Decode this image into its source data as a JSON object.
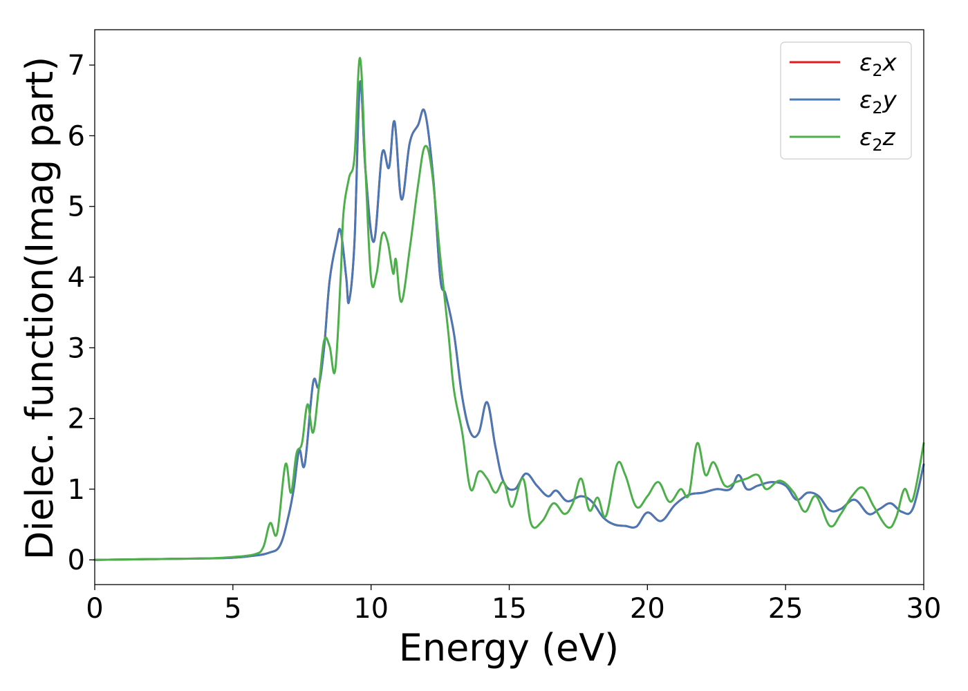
{
  "chart_data": {
    "type": "line",
    "title": "",
    "xlabel": "Energy (eV)",
    "ylabel": "Dielec. function(Imag part)",
    "xlim": [
      0,
      30
    ],
    "ylim": [
      -0.35,
      7.5
    ],
    "xticks": [
      0,
      5,
      10,
      15,
      20,
      25,
      30
    ],
    "yticks": [
      0,
      1,
      2,
      3,
      4,
      5,
      6,
      7
    ],
    "grid": false,
    "legend_position": "top-right",
    "series": [
      {
        "name": "ε2x",
        "name_base": "ε",
        "name_sub": "2",
        "name_suffix": "x",
        "color": "#e41a1c",
        "points": [
          [
            0,
            0.0
          ],
          [
            2,
            0.01
          ],
          [
            4,
            0.02
          ],
          [
            5,
            0.03
          ],
          [
            5.8,
            0.06
          ],
          [
            6.3,
            0.1
          ],
          [
            6.7,
            0.2
          ],
          [
            7.0,
            0.6
          ],
          [
            7.2,
            1.0
          ],
          [
            7.4,
            1.55
          ],
          [
            7.6,
            1.35
          ],
          [
            7.9,
            2.5
          ],
          [
            8.1,
            2.45
          ],
          [
            8.3,
            3.0
          ],
          [
            8.5,
            3.95
          ],
          [
            8.75,
            4.5
          ],
          [
            8.9,
            4.65
          ],
          [
            9.1,
            4.0
          ],
          [
            9.2,
            3.65
          ],
          [
            9.4,
            4.5
          ],
          [
            9.6,
            6.75
          ],
          [
            9.8,
            5.5
          ],
          [
            10.1,
            4.5
          ],
          [
            10.4,
            5.75
          ],
          [
            10.65,
            5.55
          ],
          [
            10.85,
            6.2
          ],
          [
            11.1,
            5.1
          ],
          [
            11.4,
            5.9
          ],
          [
            11.7,
            6.15
          ],
          [
            11.95,
            6.33
          ],
          [
            12.25,
            5.4
          ],
          [
            12.5,
            4.0
          ],
          [
            12.7,
            3.75
          ],
          [
            13.0,
            3.2
          ],
          [
            13.3,
            2.3
          ],
          [
            13.6,
            1.8
          ],
          [
            13.9,
            1.8
          ],
          [
            14.2,
            2.23
          ],
          [
            14.5,
            1.6
          ],
          [
            14.8,
            1.1
          ],
          [
            15.2,
            1.0
          ],
          [
            15.6,
            1.22
          ],
          [
            16.0,
            1.05
          ],
          [
            16.4,
            0.9
          ],
          [
            16.7,
            0.98
          ],
          [
            17.1,
            0.83
          ],
          [
            17.6,
            0.9
          ],
          [
            18.0,
            0.82
          ],
          [
            18.4,
            0.6
          ],
          [
            18.8,
            0.5
          ],
          [
            19.2,
            0.48
          ],
          [
            19.6,
            0.47
          ],
          [
            20.0,
            0.67
          ],
          [
            20.5,
            0.55
          ],
          [
            21.0,
            0.78
          ],
          [
            21.5,
            0.92
          ],
          [
            22.0,
            0.95
          ],
          [
            22.5,
            1.0
          ],
          [
            23.0,
            1.0
          ],
          [
            23.3,
            1.2
          ],
          [
            23.6,
            1.0
          ],
          [
            24.0,
            1.05
          ],
          [
            24.5,
            1.1
          ],
          [
            25.0,
            1.05
          ],
          [
            25.4,
            0.85
          ],
          [
            25.8,
            0.95
          ],
          [
            26.2,
            0.9
          ],
          [
            26.6,
            0.7
          ],
          [
            27.0,
            0.72
          ],
          [
            27.5,
            0.85
          ],
          [
            28.0,
            0.65
          ],
          [
            28.4,
            0.72
          ],
          [
            28.8,
            0.8
          ],
          [
            29.2,
            0.68
          ],
          [
            29.6,
            0.72
          ],
          [
            30.0,
            1.35
          ]
        ]
      },
      {
        "name": "ε2y",
        "name_base": "ε",
        "name_sub": "2",
        "name_suffix": "y",
        "color": "#4878b5",
        "points": [
          [
            0,
            0.0
          ],
          [
            2,
            0.01
          ],
          [
            4,
            0.02
          ],
          [
            5,
            0.03
          ],
          [
            5.8,
            0.06
          ],
          [
            6.3,
            0.1
          ],
          [
            6.7,
            0.2
          ],
          [
            7.0,
            0.6
          ],
          [
            7.2,
            1.0
          ],
          [
            7.4,
            1.55
          ],
          [
            7.6,
            1.35
          ],
          [
            7.9,
            2.5
          ],
          [
            8.1,
            2.45
          ],
          [
            8.3,
            3.0
          ],
          [
            8.5,
            3.95
          ],
          [
            8.75,
            4.5
          ],
          [
            8.9,
            4.65
          ],
          [
            9.1,
            4.0
          ],
          [
            9.2,
            3.65
          ],
          [
            9.4,
            4.5
          ],
          [
            9.6,
            6.75
          ],
          [
            9.8,
            5.5
          ],
          [
            10.1,
            4.5
          ],
          [
            10.4,
            5.75
          ],
          [
            10.65,
            5.55
          ],
          [
            10.85,
            6.2
          ],
          [
            11.1,
            5.1
          ],
          [
            11.4,
            5.9
          ],
          [
            11.7,
            6.15
          ],
          [
            11.95,
            6.33
          ],
          [
            12.25,
            5.4
          ],
          [
            12.5,
            4.0
          ],
          [
            12.7,
            3.75
          ],
          [
            13.0,
            3.2
          ],
          [
            13.3,
            2.3
          ],
          [
            13.6,
            1.8
          ],
          [
            13.9,
            1.8
          ],
          [
            14.2,
            2.23
          ],
          [
            14.5,
            1.6
          ],
          [
            14.8,
            1.1
          ],
          [
            15.2,
            1.0
          ],
          [
            15.6,
            1.22
          ],
          [
            16.0,
            1.05
          ],
          [
            16.4,
            0.9
          ],
          [
            16.7,
            0.98
          ],
          [
            17.1,
            0.83
          ],
          [
            17.6,
            0.9
          ],
          [
            18.0,
            0.82
          ],
          [
            18.4,
            0.6
          ],
          [
            18.8,
            0.5
          ],
          [
            19.2,
            0.48
          ],
          [
            19.6,
            0.47
          ],
          [
            20.0,
            0.67
          ],
          [
            20.5,
            0.55
          ],
          [
            21.0,
            0.78
          ],
          [
            21.5,
            0.92
          ],
          [
            22.0,
            0.95
          ],
          [
            22.5,
            1.0
          ],
          [
            23.0,
            1.0
          ],
          [
            23.3,
            1.2
          ],
          [
            23.6,
            1.0
          ],
          [
            24.0,
            1.05
          ],
          [
            24.5,
            1.1
          ],
          [
            25.0,
            1.05
          ],
          [
            25.4,
            0.85
          ],
          [
            25.8,
            0.95
          ],
          [
            26.2,
            0.9
          ],
          [
            26.6,
            0.7
          ],
          [
            27.0,
            0.72
          ],
          [
            27.5,
            0.85
          ],
          [
            28.0,
            0.65
          ],
          [
            28.4,
            0.72
          ],
          [
            28.8,
            0.8
          ],
          [
            29.2,
            0.68
          ],
          [
            29.6,
            0.72
          ],
          [
            30.0,
            1.35
          ]
        ]
      },
      {
        "name": "ε2z",
        "name_base": "ε",
        "name_sub": "2",
        "name_suffix": "z",
        "color": "#4daf4a",
        "points": [
          [
            0,
            0.0
          ],
          [
            2,
            0.01
          ],
          [
            4,
            0.02
          ],
          [
            5,
            0.04
          ],
          [
            5.8,
            0.08
          ],
          [
            6.1,
            0.18
          ],
          [
            6.35,
            0.52
          ],
          [
            6.6,
            0.38
          ],
          [
            6.9,
            1.35
          ],
          [
            7.1,
            0.95
          ],
          [
            7.3,
            1.5
          ],
          [
            7.5,
            1.65
          ],
          [
            7.7,
            2.2
          ],
          [
            7.9,
            1.8
          ],
          [
            8.1,
            2.4
          ],
          [
            8.3,
            3.1
          ],
          [
            8.5,
            3.02
          ],
          [
            8.7,
            2.68
          ],
          [
            8.9,
            4.0
          ],
          [
            9.0,
            4.9
          ],
          [
            9.2,
            5.4
          ],
          [
            9.4,
            5.7
          ],
          [
            9.6,
            7.1
          ],
          [
            9.8,
            5.5
          ],
          [
            10.0,
            3.98
          ],
          [
            10.2,
            4.05
          ],
          [
            10.4,
            4.6
          ],
          [
            10.6,
            4.5
          ],
          [
            10.8,
            4.05
          ],
          [
            10.9,
            4.25
          ],
          [
            11.1,
            3.65
          ],
          [
            11.4,
            4.4
          ],
          [
            11.7,
            5.3
          ],
          [
            11.95,
            5.85
          ],
          [
            12.2,
            5.5
          ],
          [
            12.5,
            4.3
          ],
          [
            12.8,
            3.2
          ],
          [
            13.0,
            2.4
          ],
          [
            13.3,
            1.8
          ],
          [
            13.6,
            1.0
          ],
          [
            13.9,
            1.25
          ],
          [
            14.2,
            1.15
          ],
          [
            14.5,
            0.95
          ],
          [
            14.8,
            1.1
          ],
          [
            15.1,
            0.75
          ],
          [
            15.5,
            1.15
          ],
          [
            15.8,
            0.5
          ],
          [
            16.2,
            0.55
          ],
          [
            16.6,
            0.8
          ],
          [
            17.0,
            0.65
          ],
          [
            17.3,
            0.8
          ],
          [
            17.6,
            1.15
          ],
          [
            17.9,
            0.7
          ],
          [
            18.2,
            0.88
          ],
          [
            18.5,
            0.62
          ],
          [
            18.9,
            1.35
          ],
          [
            19.2,
            1.2
          ],
          [
            19.6,
            0.75
          ],
          [
            20.0,
            0.9
          ],
          [
            20.4,
            1.1
          ],
          [
            20.8,
            0.82
          ],
          [
            21.2,
            1.0
          ],
          [
            21.5,
            0.92
          ],
          [
            21.8,
            1.65
          ],
          [
            22.1,
            1.2
          ],
          [
            22.4,
            1.38
          ],
          [
            22.8,
            1.05
          ],
          [
            23.2,
            1.1
          ],
          [
            23.6,
            1.15
          ],
          [
            24.0,
            1.2
          ],
          [
            24.3,
            1.0
          ],
          [
            24.8,
            1.12
          ],
          [
            25.3,
            0.95
          ],
          [
            25.7,
            0.68
          ],
          [
            26.1,
            0.9
          ],
          [
            26.6,
            0.48
          ],
          [
            27.0,
            0.65
          ],
          [
            27.4,
            0.9
          ],
          [
            27.8,
            1.02
          ],
          [
            28.2,
            0.75
          ],
          [
            28.7,
            0.46
          ],
          [
            29.0,
            0.6
          ],
          [
            29.3,
            1.0
          ],
          [
            29.6,
            0.85
          ],
          [
            30.0,
            1.65
          ]
        ]
      }
    ]
  }
}
